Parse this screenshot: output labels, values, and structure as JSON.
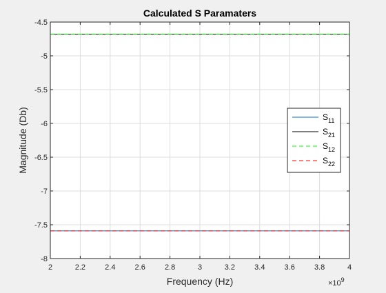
{
  "chart_data": {
    "type": "line",
    "title": "Calculated S Paramaters",
    "xlabel": "Frequency (Hz)",
    "ylabel": "Magnitude (Db)",
    "x_exponent_label": "×10",
    "x_exponent_power": "9",
    "xlim": [
      2000000000.0,
      4000000000.0
    ],
    "ylim": [
      -8,
      -4.5
    ],
    "xticks": [
      2000000000.0,
      2200000000.0,
      2400000000.0,
      2600000000.0,
      2800000000.0,
      3000000000.0,
      3200000000.0,
      3400000000.0,
      3600000000.0,
      3800000000.0,
      4000000000.0
    ],
    "xtick_labels": [
      "2",
      "2.2",
      "2.4",
      "2.6",
      "2.8",
      "3",
      "3.2",
      "3.4",
      "3.6",
      "3.8",
      "4"
    ],
    "yticks": [
      -8,
      -7.5,
      -7,
      -6.5,
      -6,
      -5.5,
      -5,
      -4.5
    ],
    "ytick_labels": [
      "-8",
      "-7.5",
      "-7",
      "-6.5",
      "-6",
      "-5.5",
      "-5",
      "-4.5"
    ],
    "grid": true,
    "legend_position": "right",
    "series": [
      {
        "name": "S",
        "sub": "11",
        "color": "#0072bd",
        "dash": "solid",
        "x": [
          2000000000.0,
          4000000000.0
        ],
        "values": [
          -7.59,
          -7.59
        ]
      },
      {
        "name": "S",
        "sub": "21",
        "color": "#000000",
        "dash": "solid",
        "x": [
          2000000000.0,
          4000000000.0
        ],
        "values": [
          -4.68,
          -4.68
        ]
      },
      {
        "name": "S",
        "sub": "12",
        "color": "#00ff00",
        "dash": "dashed",
        "x": [
          2000000000.0,
          4000000000.0
        ],
        "values": [
          -4.68,
          -4.68
        ]
      },
      {
        "name": "S",
        "sub": "22",
        "color": "#ff0000",
        "dash": "dashed",
        "x": [
          2000000000.0,
          4000000000.0
        ],
        "values": [
          -7.59,
          -7.59
        ]
      }
    ]
  }
}
